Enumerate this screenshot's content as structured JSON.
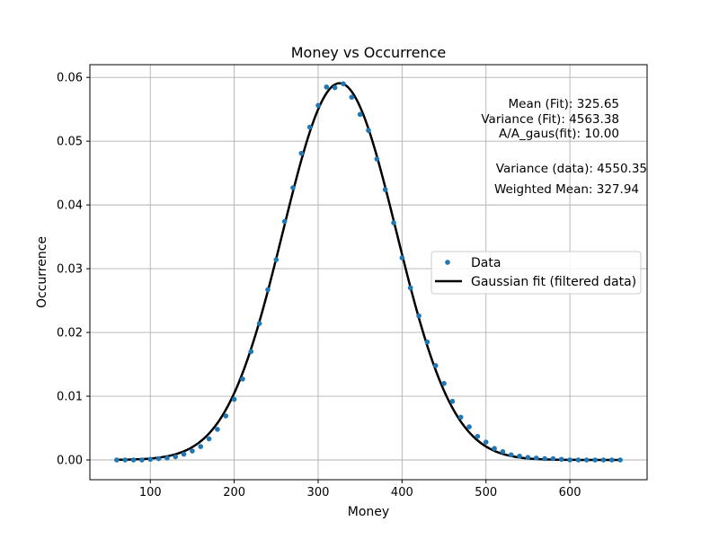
{
  "chart_data": {
    "type": "scatter",
    "title": "Money vs Occurrence",
    "xlabel": "Money",
    "ylabel": "Occurrence",
    "xlim": [
      28,
      692
    ],
    "ylim": [
      -0.0031,
      0.062
    ],
    "xticks": [
      100,
      200,
      300,
      400,
      500,
      600
    ],
    "xtick_labels": [
      "100",
      "200",
      "300",
      "400",
      "500",
      "600"
    ],
    "yticks": [
      0.0,
      0.01,
      0.02,
      0.03,
      0.04,
      0.05,
      0.06
    ],
    "ytick_labels": [
      "0.00",
      "0.01",
      "0.02",
      "0.03",
      "0.04",
      "0.05",
      "0.06"
    ],
    "grid": true,
    "legend_position": "center-right",
    "series": [
      {
        "name": "Data",
        "kind": "points",
        "color": "#1f77b4",
        "x": [
          60,
          70,
          80,
          90,
          100,
          110,
          120,
          130,
          140,
          150,
          160,
          170,
          180,
          190,
          200,
          210,
          220,
          230,
          240,
          250,
          260,
          270,
          280,
          290,
          300,
          310,
          320,
          330,
          340,
          350,
          360,
          370,
          380,
          390,
          400,
          410,
          420,
          430,
          440,
          450,
          460,
          470,
          480,
          490,
          500,
          510,
          520,
          530,
          540,
          550,
          560,
          570,
          580,
          590,
          600,
          610,
          620,
          630,
          640,
          650,
          660
        ],
        "y": [
          0.0,
          0.0,
          0.0,
          0.0,
          0.0001,
          0.0002,
          0.0003,
          0.0005,
          0.0009,
          0.0014,
          0.0021,
          0.0033,
          0.0048,
          0.0069,
          0.0095,
          0.0127,
          0.017,
          0.0214,
          0.0267,
          0.0314,
          0.0374,
          0.0427,
          0.0481,
          0.0522,
          0.0556,
          0.0585,
          0.0584,
          0.059,
          0.0569,
          0.0542,
          0.0517,
          0.0472,
          0.0424,
          0.0372,
          0.0317,
          0.027,
          0.0226,
          0.0185,
          0.0148,
          0.012,
          0.0092,
          0.0067,
          0.0052,
          0.0037,
          0.0028,
          0.0018,
          0.0013,
          0.0008,
          0.0006,
          0.0004,
          0.0003,
          0.0002,
          0.0002,
          0.0001,
          0.0,
          0.0,
          0.0,
          0.0,
          0.0,
          0.0,
          0.0
        ]
      },
      {
        "name": "Gaussian fit (filtered data)",
        "kind": "curve",
        "color": "#000000",
        "model": "gaussian",
        "mean": 325.65,
        "variance": 4563.38,
        "peak": 0.0591,
        "x_range": [
          60,
          660
        ]
      }
    ],
    "annotations": [
      "Mean (Fit): 325.65",
      "Variance (Fit): 4563.38",
      "A/A_gaus(fit): 10.00",
      "Variance (data): 4550.35",
      "Weighted Mean: 327.94"
    ]
  }
}
